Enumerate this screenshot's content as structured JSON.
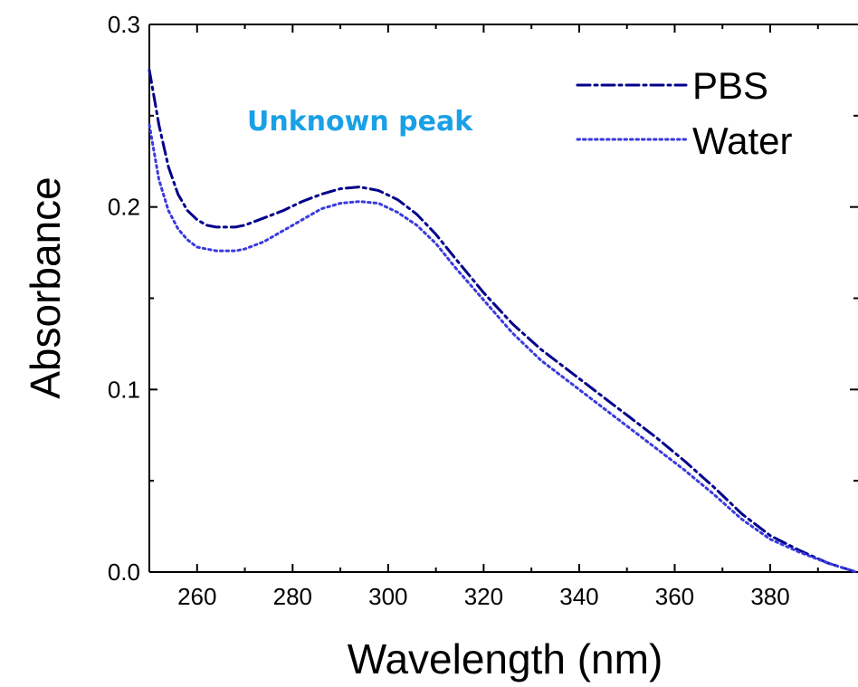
{
  "chart_data": {
    "type": "line",
    "title": "",
    "xlabel": "Wavelength (nm)",
    "ylabel": "Absorbance",
    "xlim": [
      250,
      398
    ],
    "ylim": [
      0.0,
      0.3
    ],
    "xticks": [
      260,
      280,
      300,
      320,
      340,
      360,
      380
    ],
    "xtick_labels": [
      "260",
      "280",
      "300",
      "320",
      "340",
      "360",
      "380"
    ],
    "yticks": [
      0.0,
      0.1,
      0.2,
      0.3
    ],
    "ytick_labels": [
      "0.0",
      "0.1",
      "0.2",
      "0.3"
    ],
    "grid": false,
    "legend_position": "top-right",
    "annotation": {
      "text": "Unknown peak",
      "color": "#1aa0e6"
    },
    "series": [
      {
        "name": "PBS",
        "color": "#00008b",
        "dash": "dash-dot",
        "x": [
          250,
          252,
          254,
          256,
          258,
          260,
          262,
          264,
          266,
          268,
          270,
          274,
          278,
          282,
          286,
          290,
          294,
          298,
          302,
          306,
          310,
          314,
          320,
          326,
          332,
          338,
          344,
          350,
          356,
          362,
          368,
          374,
          380,
          386,
          392,
          398
        ],
        "y": [
          0.275,
          0.245,
          0.222,
          0.207,
          0.198,
          0.193,
          0.19,
          0.189,
          0.189,
          0.189,
          0.19,
          0.194,
          0.198,
          0.203,
          0.207,
          0.21,
          0.211,
          0.209,
          0.204,
          0.196,
          0.185,
          0.172,
          0.153,
          0.136,
          0.122,
          0.11,
          0.098,
          0.086,
          0.074,
          0.061,
          0.047,
          0.032,
          0.02,
          0.012,
          0.005,
          0.0
        ]
      },
      {
        "name": "Water",
        "color": "#3a3adf",
        "dash": "dotted",
        "x": [
          250,
          252,
          254,
          256,
          258,
          260,
          262,
          264,
          266,
          268,
          270,
          274,
          278,
          282,
          286,
          290,
          294,
          298,
          302,
          306,
          310,
          314,
          320,
          326,
          332,
          338,
          344,
          350,
          356,
          362,
          368,
          374,
          380,
          386,
          392,
          398
        ],
        "y": [
          0.245,
          0.215,
          0.198,
          0.188,
          0.182,
          0.178,
          0.177,
          0.176,
          0.176,
          0.176,
          0.177,
          0.181,
          0.187,
          0.193,
          0.199,
          0.202,
          0.203,
          0.202,
          0.197,
          0.19,
          0.18,
          0.167,
          0.149,
          0.131,
          0.116,
          0.104,
          0.092,
          0.08,
          0.068,
          0.056,
          0.043,
          0.029,
          0.018,
          0.011,
          0.005,
          0.0
        ]
      }
    ]
  }
}
